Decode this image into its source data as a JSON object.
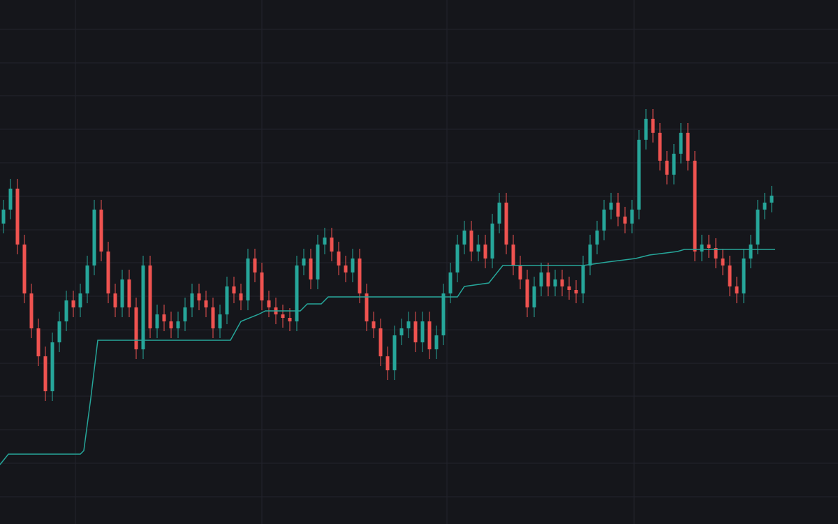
{
  "chart_data": {
    "type": "candlestick",
    "x": [
      5,
      15,
      25,
      35,
      45,
      55,
      65,
      75,
      85,
      95,
      105,
      115,
      125,
      135,
      145,
      155,
      165,
      175,
      185,
      195,
      205,
      215,
      225,
      235,
      245,
      255,
      265,
      275,
      285,
      295,
      305,
      315,
      325,
      335,
      345,
      355,
      365,
      375,
      385,
      395,
      405,
      415,
      425,
      435,
      445,
      455,
      465,
      475,
      485,
      495,
      505,
      515,
      525,
      535,
      545,
      555,
      565,
      575,
      585,
      595,
      605,
      615,
      625,
      635,
      645,
      655,
      665,
      675,
      685,
      695,
      705,
      715,
      725,
      735,
      745,
      755,
      765,
      775,
      785,
      795,
      805,
      815,
      825,
      835,
      845,
      855,
      865,
      875,
      885,
      895,
      905,
      915,
      925,
      935,
      945,
      955,
      965,
      975,
      985,
      995,
      1005,
      1015,
      1025,
      1035,
      1045,
      1055,
      1065,
      1075,
      1085,
      1095,
      1105
    ],
    "open": [
      430,
      450,
      480,
      400,
      330,
      280,
      240,
      190,
      260,
      290,
      320,
      310,
      330,
      370,
      450,
      390,
      330,
      310,
      350,
      310,
      250,
      370,
      280,
      300,
      290,
      280,
      290,
      310,
      330,
      320,
      310,
      280,
      300,
      340,
      330,
      320,
      380,
      360,
      320,
      310,
      300,
      295,
      290,
      370,
      380,
      350,
      400,
      410,
      390,
      370,
      360,
      380,
      330,
      290,
      280,
      240,
      220,
      270,
      280,
      290,
      260,
      290,
      250,
      270,
      330,
      360,
      400,
      420,
      390,
      400,
      380,
      430,
      460,
      400,
      370,
      350,
      310,
      340,
      360,
      340,
      350,
      340,
      335,
      330,
      370,
      400,
      420,
      450,
      460,
      440,
      430,
      450,
      550,
      580,
      560,
      520,
      500,
      530,
      560,
      520,
      390,
      400,
      395,
      380,
      370,
      340,
      330,
      380,
      400,
      450,
      460
    ],
    "high": [
      464,
      494,
      494,
      414,
      344,
      294,
      254,
      274,
      304,
      334,
      334,
      344,
      384,
      464,
      464,
      404,
      344,
      364,
      364,
      324,
      384,
      384,
      314,
      314,
      304,
      304,
      324,
      344,
      344,
      334,
      324,
      314,
      354,
      354,
      344,
      394,
      394,
      374,
      334,
      324,
      314,
      309,
      384,
      394,
      394,
      414,
      424,
      424,
      404,
      384,
      394,
      394,
      344,
      304,
      294,
      254,
      284,
      294,
      304,
      304,
      304,
      304,
      284,
      344,
      374,
      414,
      434,
      434,
      414,
      414,
      444,
      474,
      474,
      414,
      384,
      364,
      354,
      374,
      374,
      364,
      364,
      354,
      349,
      384,
      414,
      434,
      464,
      474,
      474,
      454,
      464,
      564,
      594,
      594,
      574,
      534,
      544,
      574,
      574,
      534,
      414,
      414,
      409,
      394,
      384,
      354,
      394,
      414,
      464,
      474,
      484
    ],
    "low": [
      416,
      436,
      386,
      316,
      266,
      226,
      176,
      176,
      246,
      276,
      296,
      296,
      316,
      356,
      376,
      316,
      296,
      296,
      296,
      236,
      236,
      266,
      266,
      276,
      266,
      266,
      276,
      296,
      306,
      296,
      266,
      266,
      286,
      316,
      306,
      306,
      346,
      306,
      296,
      286,
      281,
      276,
      276,
      356,
      336,
      336,
      386,
      376,
      356,
      346,
      346,
      316,
      276,
      266,
      226,
      206,
      206,
      256,
      266,
      246,
      246,
      236,
      236,
      256,
      316,
      346,
      386,
      376,
      376,
      366,
      366,
      416,
      386,
      356,
      336,
      296,
      296,
      326,
      326,
      326,
      326,
      321,
      316,
      316,
      356,
      386,
      406,
      436,
      426,
      416,
      416,
      436,
      536,
      546,
      506,
      486,
      486,
      516,
      506,
      376,
      376,
      381,
      366,
      356,
      326,
      316,
      316,
      366,
      386,
      436,
      446
    ],
    "close": [
      450,
      480,
      400,
      330,
      280,
      240,
      190,
      260,
      290,
      320,
      310,
      330,
      370,
      450,
      390,
      330,
      310,
      350,
      310,
      250,
      370,
      280,
      300,
      290,
      280,
      290,
      310,
      330,
      320,
      310,
      280,
      300,
      340,
      330,
      320,
      380,
      360,
      320,
      310,
      300,
      295,
      290,
      370,
      380,
      350,
      400,
      410,
      390,
      370,
      360,
      380,
      330,
      290,
      280,
      240,
      220,
      270,
      280,
      290,
      260,
      290,
      250,
      270,
      330,
      360,
      400,
      420,
      390,
      400,
      380,
      430,
      460,
      400,
      370,
      350,
      310,
      340,
      360,
      340,
      350,
      340,
      335,
      330,
      370,
      400,
      420,
      450,
      460,
      440,
      430,
      450,
      550,
      580,
      560,
      520,
      500,
      530,
      560,
      520,
      390,
      400,
      395,
      380,
      370,
      340,
      330,
      380,
      400,
      450,
      460,
      470
    ],
    "up_color": "#26a69a",
    "down_color": "#ef5350",
    "stop_line": {
      "color": "#26a69a",
      "x": [
        0,
        12,
        115,
        120,
        130,
        140,
        330,
        345,
        370,
        380,
        430,
        440,
        460,
        470,
        655,
        665,
        700,
        720,
        835,
        870,
        910,
        930,
        970,
        980,
        1110
      ],
      "values": [
        85,
        100,
        100,
        105,
        180,
        263,
        263,
        290,
        300,
        305,
        305,
        315,
        315,
        325,
        325,
        340,
        345,
        370,
        370,
        375,
        380,
        385,
        390,
        393,
        393
      ]
    },
    "xlim": [
      0,
      1200
    ],
    "ylim": [
      0,
      750
    ],
    "xticks": [
      108,
      375,
      640,
      908
    ],
    "yticks": [
      39,
      87,
      135,
      183,
      230,
      278,
      326,
      374,
      421,
      469,
      517,
      565,
      613,
      660,
      708
    ],
    "grid": true
  }
}
